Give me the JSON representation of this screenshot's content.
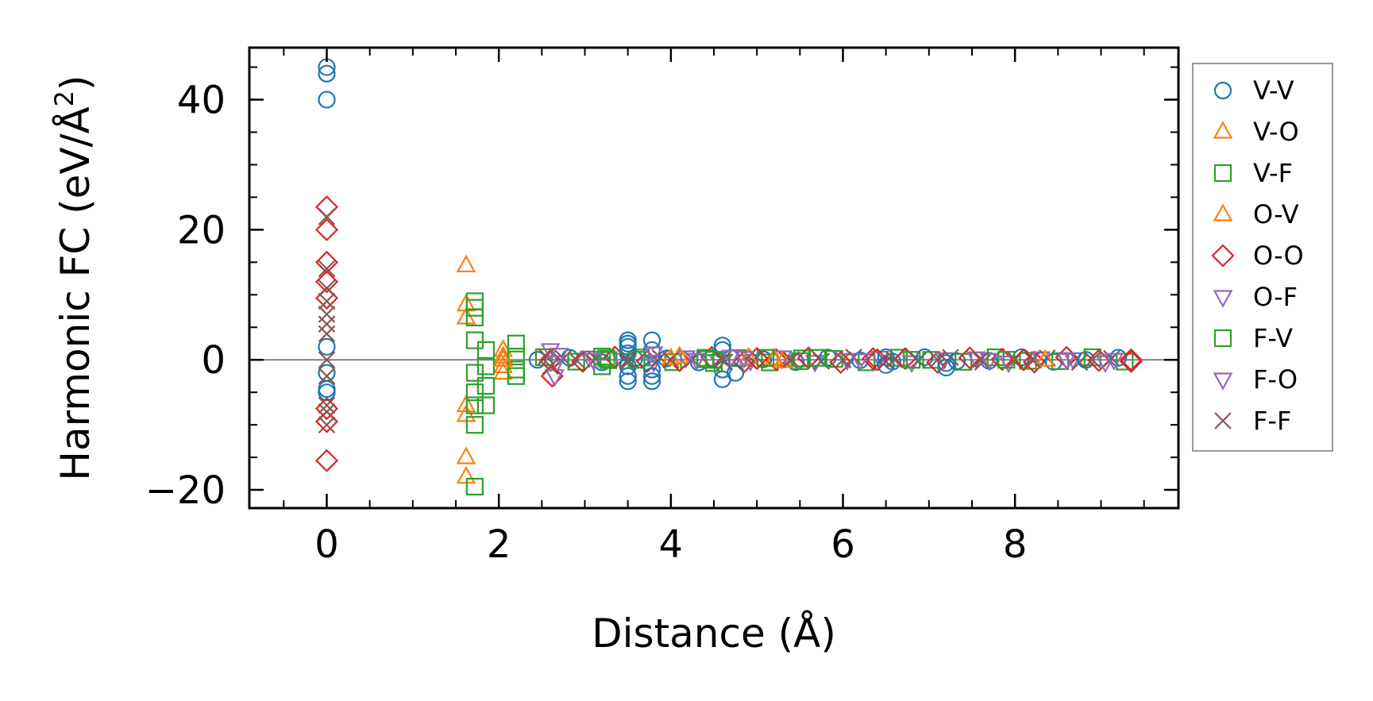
{
  "chart_data": {
    "type": "scatter",
    "xlabel": "Distance (Å)",
    "ylabel_main": "Harmonic FC (eV/Å",
    "ylabel_sup": "2",
    "ylabel_close": ")",
    "xlim": [
      -0.9,
      9.9
    ],
    "ylim": [
      -22.8,
      48.0
    ],
    "xticks": [
      0,
      2,
      4,
      6,
      8
    ],
    "xtick_labels": [
      "0",
      "2",
      "4",
      "6",
      "8"
    ],
    "yticks": [
      -20,
      0,
      20,
      40
    ],
    "ytick_labels": [
      "−20",
      "0",
      "20",
      "40"
    ],
    "zero_line": true,
    "grid": false,
    "legend_placement": "outside-right",
    "series": [
      {
        "name": "V-V",
        "marker": "circle",
        "color": "#1f77b4",
        "points": [
          [
            0,
            45
          ],
          [
            0,
            44
          ],
          [
            0,
            40
          ],
          [
            0,
            2
          ],
          [
            0,
            -2
          ],
          [
            0,
            -4.5
          ],
          [
            0,
            -5
          ],
          [
            3.5,
            3
          ],
          [
            3.5,
            2.5
          ],
          [
            3.5,
            2
          ],
          [
            3.5,
            1
          ],
          [
            3.5,
            -1
          ],
          [
            3.5,
            -2.5
          ],
          [
            3.5,
            -3.3
          ],
          [
            3.78,
            3
          ],
          [
            3.78,
            1.5
          ],
          [
            3.78,
            -1.5
          ],
          [
            3.78,
            -2.5
          ],
          [
            3.78,
            -3.3
          ],
          [
            4.6,
            2.2
          ],
          [
            4.6,
            1.5
          ],
          [
            4.6,
            -1.5
          ],
          [
            4.6,
            -3
          ],
          [
            4.75,
            -2
          ],
          [
            6.5,
            0.4
          ],
          [
            6.5,
            -0.8
          ],
          [
            7.2,
            -0.5
          ],
          [
            7.2,
            -1.2
          ]
        ]
      },
      {
        "name": "V-O",
        "marker": "triangle-up",
        "color": "#ff7f0e",
        "points": [
          [
            1.62,
            14.5
          ],
          [
            1.62,
            8.5
          ],
          [
            1.62,
            6.5
          ],
          [
            1.62,
            -7
          ],
          [
            1.62,
            -8.5
          ],
          [
            1.62,
            -15
          ],
          [
            1.62,
            -18
          ],
          [
            2.05,
            1.5
          ],
          [
            2.05,
            0.5
          ],
          [
            2.05,
            -1
          ],
          [
            2.05,
            -2
          ],
          [
            4.1,
            0.5
          ],
          [
            4.9,
            0.3
          ],
          [
            5.2,
            0.2
          ],
          [
            8.35,
            0
          ]
        ]
      },
      {
        "name": "V-F",
        "marker": "square",
        "color": "#2ca02c",
        "points": [
          [
            1.72,
            9
          ],
          [
            1.72,
            8
          ],
          [
            1.72,
            6.5
          ],
          [
            1.72,
            3
          ],
          [
            1.72,
            -2
          ],
          [
            1.72,
            -5
          ],
          [
            1.72,
            -7
          ],
          [
            1.72,
            -10
          ],
          [
            1.72,
            -19.5
          ],
          [
            1.85,
            1.5
          ],
          [
            1.85,
            -1
          ],
          [
            1.85,
            -4
          ],
          [
            1.85,
            -7
          ],
          [
            2.2,
            2.5
          ],
          [
            2.2,
            0.5
          ],
          [
            2.2,
            -1.5
          ],
          [
            2.2,
            -2.5
          ],
          [
            3.2,
            0.5
          ],
          [
            3.2,
            -1
          ],
          [
            4.4,
            0.3
          ],
          [
            4.5,
            -0.5
          ],
          [
            5.1,
            0.3
          ],
          [
            5.5,
            -0.2
          ]
        ]
      },
      {
        "name": "O-V",
        "marker": "triangle-up",
        "color": "#ff7f0e",
        "points": [
          [
            2.05,
            0
          ],
          [
            4.0,
            0.2
          ],
          [
            5.3,
            -0.2
          ]
        ]
      },
      {
        "name": "O-O",
        "marker": "diamond",
        "color": "#d62728",
        "points": [
          [
            0,
            23.5
          ],
          [
            0,
            20
          ],
          [
            0,
            15
          ],
          [
            0,
            12
          ],
          [
            0,
            9.5
          ],
          [
            0,
            -7.5
          ],
          [
            0,
            -9.5
          ],
          [
            0,
            -15.5
          ],
          [
            2.62,
            -2.5
          ],
          [
            5.0,
            0.2
          ],
          [
            6.4,
            0
          ],
          [
            8.1,
            0
          ],
          [
            9.35,
            0
          ]
        ]
      },
      {
        "name": "O-F",
        "marker": "triangle-down",
        "color": "#9467bd",
        "points": [
          [
            2.6,
            1.5
          ],
          [
            2.65,
            -2.5
          ],
          [
            3.8,
            1
          ],
          [
            4.3,
            0
          ],
          [
            4.85,
            0.3
          ],
          [
            7.7,
            0
          ],
          [
            8.6,
            0
          ],
          [
            9.15,
            0
          ]
        ]
      },
      {
        "name": "F-V",
        "marker": "square",
        "color": "#2ca02c",
        "points": [
          [
            3.25,
            0.2
          ],
          [
            3.6,
            0
          ],
          [
            4.5,
            0
          ],
          [
            5.7,
            0.3
          ],
          [
            6.8,
            0
          ],
          [
            7.9,
            0
          ]
        ]
      },
      {
        "name": "F-O",
        "marker": "triangle-down",
        "color": "#9467bd",
        "points": [
          [
            2.7,
            0.8
          ],
          [
            3.1,
            0
          ],
          [
            4.7,
            0.5
          ],
          [
            6.2,
            0
          ]
        ]
      },
      {
        "name": "F-F",
        "marker": "x",
        "color": "#8c564b",
        "points": [
          [
            0,
            22
          ],
          [
            0,
            14
          ],
          [
            0,
            11
          ],
          [
            0,
            9
          ],
          [
            0,
            7
          ],
          [
            0,
            5.5
          ],
          [
            0,
            4
          ],
          [
            0,
            0
          ],
          [
            0,
            -2.5
          ],
          [
            0,
            -7
          ],
          [
            0,
            -8
          ],
          [
            0,
            -10
          ],
          [
            2.55,
            0.5
          ],
          [
            2.6,
            -1
          ],
          [
            2.9,
            0
          ],
          [
            3.5,
            0
          ],
          [
            4.0,
            0
          ],
          [
            4.6,
            0
          ],
          [
            5.4,
            0
          ],
          [
            6.0,
            0
          ],
          [
            6.6,
            0
          ],
          [
            7.1,
            0
          ],
          [
            7.6,
            0
          ],
          [
            8.2,
            0
          ],
          [
            8.9,
            0
          ]
        ]
      }
    ],
    "dense_band": {
      "x_start": 2.45,
      "x_end": 9.4,
      "step": 0.075,
      "y_amplitude": 0.4
    }
  }
}
